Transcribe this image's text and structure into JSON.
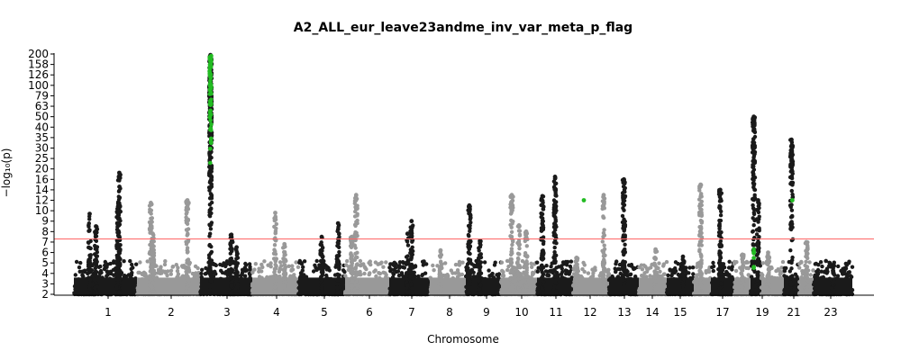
{
  "chart_data": {
    "type": "scatter",
    "title": "A2_ALL_eur_leave23andme_inv_var_meta_p_flag",
    "xlabel": "Chromosome",
    "ylabel": "−log₁₀(p)",
    "y_scale": "compressed (linear below 16, log above)",
    "yticks": [
      2,
      3,
      4,
      5,
      6,
      7,
      8,
      9,
      10,
      12,
      14,
      16,
      20,
      25,
      30,
      35,
      40,
      50,
      63,
      79,
      100,
      126,
      158,
      200
    ],
    "ylim": [
      2,
      200
    ],
    "significance_threshold": 7.3,
    "colors": {
      "odd_chrom": "#1a1a1a",
      "even_chrom": "#999999",
      "flagged": "#22bb22",
      "threshold_line": "#ff6666"
    },
    "x_tick_labels": [
      "1",
      "2",
      "3",
      "4",
      "5",
      "6",
      "7",
      "8",
      "9",
      "10",
      "11",
      "12",
      "13",
      "14",
      "15",
      "17",
      "19",
      "21",
      "23"
    ],
    "chromosomes": [
      {
        "chr": "1",
        "peaks": [
          {
            "pos": 0.25,
            "p": 9.7
          },
          {
            "pos": 0.35,
            "p": 8.5
          },
          {
            "pos": 0.72,
            "p": 18.5
          },
          {
            "pos": 0.7,
            "p": 10.8
          }
        ]
      },
      {
        "chr": "2",
        "peaks": [
          {
            "pos": 0.22,
            "p": 11.5
          },
          {
            "pos": 0.25,
            "p": 7.8
          },
          {
            "pos": 0.8,
            "p": 12.0
          }
        ]
      },
      {
        "chr": "3",
        "peaks": [
          {
            "pos": 0.2,
            "p": 196
          },
          {
            "pos": 0.2,
            "p": 80
          },
          {
            "pos": 0.6,
            "p": 7.7
          },
          {
            "pos": 0.7,
            "p": 6.5
          }
        ]
      },
      {
        "chr": "4",
        "peaks": [
          {
            "pos": 0.5,
            "p": 9.8
          },
          {
            "pos": 0.7,
            "p": 6.8
          }
        ]
      },
      {
        "chr": "5",
        "peaks": [
          {
            "pos": 0.5,
            "p": 7.5
          },
          {
            "pos": 0.85,
            "p": 8.8
          }
        ]
      },
      {
        "chr": "6",
        "peaks": [
          {
            "pos": 0.15,
            "p": 7.5
          },
          {
            "pos": 0.25,
            "p": 13.0
          }
        ]
      },
      {
        "chr": "7",
        "peaks": [
          {
            "pos": 0.45,
            "p": 7.8
          },
          {
            "pos": 0.55,
            "p": 9.0
          }
        ]
      },
      {
        "chr": "8",
        "peaks": [
          {
            "pos": 0.3,
            "p": 6.2
          }
        ]
      },
      {
        "chr": "9",
        "peaks": [
          {
            "pos": 0.1,
            "p": 11.0
          },
          {
            "pos": 0.4,
            "p": 7.1
          }
        ]
      },
      {
        "chr": "10",
        "peaks": [
          {
            "pos": 0.3,
            "p": 13.0
          },
          {
            "pos": 0.5,
            "p": 8.6
          },
          {
            "pos": 0.7,
            "p": 8.0
          }
        ]
      },
      {
        "chr": "11",
        "peaks": [
          {
            "pos": 0.15,
            "p": 12.8
          },
          {
            "pos": 0.5,
            "p": 17.0
          }
        ]
      },
      {
        "chr": "12",
        "peaks": [
          {
            "pos": 0.1,
            "p": 5.5
          },
          {
            "pos": 0.3,
            "p": 12.0,
            "flagged": true
          },
          {
            "pos": 0.85,
            "p": 13.0
          }
        ]
      },
      {
        "chr": "13",
        "peaks": [
          {
            "pos": 0.5,
            "p": 16.0
          }
        ]
      },
      {
        "chr": "14",
        "peaks": [
          {
            "pos": 0.6,
            "p": 6.3
          }
        ]
      },
      {
        "chr": "15",
        "peaks": [
          {
            "pos": 0.6,
            "p": 5.6
          }
        ]
      },
      {
        "chr": "16",
        "peaks": [
          {
            "pos": 0.4,
            "p": 15.0
          }
        ]
      },
      {
        "chr": "17",
        "peaks": [
          {
            "pos": 0.4,
            "p": 14.0
          }
        ]
      },
      {
        "chr": "18",
        "peaks": [
          {
            "pos": 0.5,
            "p": 5.8
          }
        ]
      },
      {
        "chr": "19",
        "peaks": [
          {
            "pos": 0.3,
            "p": 50.0
          },
          {
            "pos": 0.3,
            "p": 6.0,
            "flagged": true
          },
          {
            "pos": 0.7,
            "p": 12.0
          }
        ]
      },
      {
        "chr": "20",
        "peaks": [
          {
            "pos": 0.3,
            "p": 6.0
          }
        ]
      },
      {
        "chr": "21",
        "peaks": [
          {
            "pos": 0.5,
            "p": 34.0
          },
          {
            "pos": 0.55,
            "p": 12.0,
            "flagged": true
          }
        ]
      },
      {
        "chr": "22",
        "peaks": [
          {
            "pos": 0.5,
            "p": 7.0
          }
        ]
      },
      {
        "chr": "23",
        "peaks": [
          {
            "pos": 0.5,
            "p": 4.8
          }
        ]
      }
    ]
  }
}
